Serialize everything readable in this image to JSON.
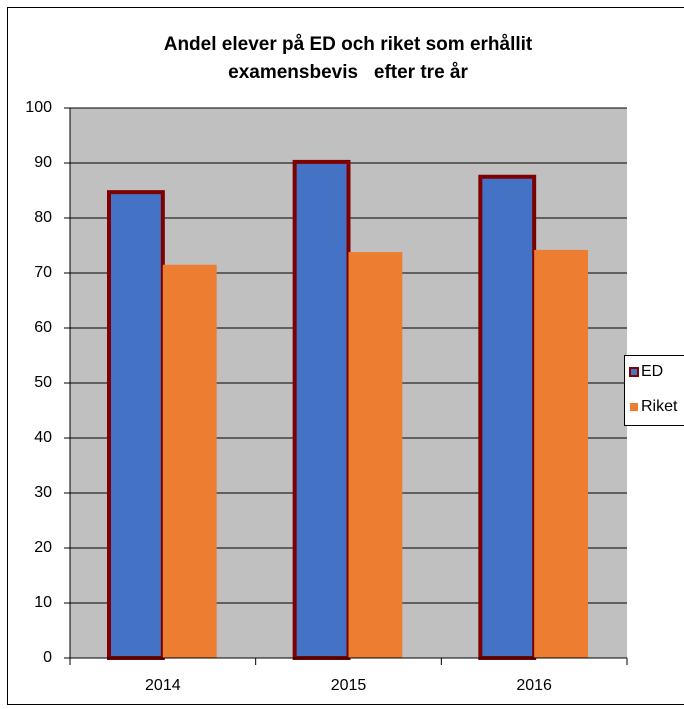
{
  "chart_data": {
    "type": "bar",
    "title": [
      "Andel elever på ED och riket som erhållit",
      "examensbevis   efter tre år"
    ],
    "categories": [
      "2014",
      "2015",
      "2016"
    ],
    "series": [
      {
        "name": "ED",
        "color": "#4472c4",
        "edge_color": "#7f0000",
        "values": [
          84.7,
          90.2,
          87.5
        ]
      },
      {
        "name": "Riket",
        "color": "#ed7d31",
        "values": [
          71.5,
          73.8,
          74.2
        ]
      }
    ],
    "ylim": [
      0,
      100
    ],
    "yticks": [
      0,
      10,
      20,
      30,
      40,
      50,
      60,
      70,
      80,
      90,
      100
    ],
    "grid": true,
    "legend": "right"
  }
}
